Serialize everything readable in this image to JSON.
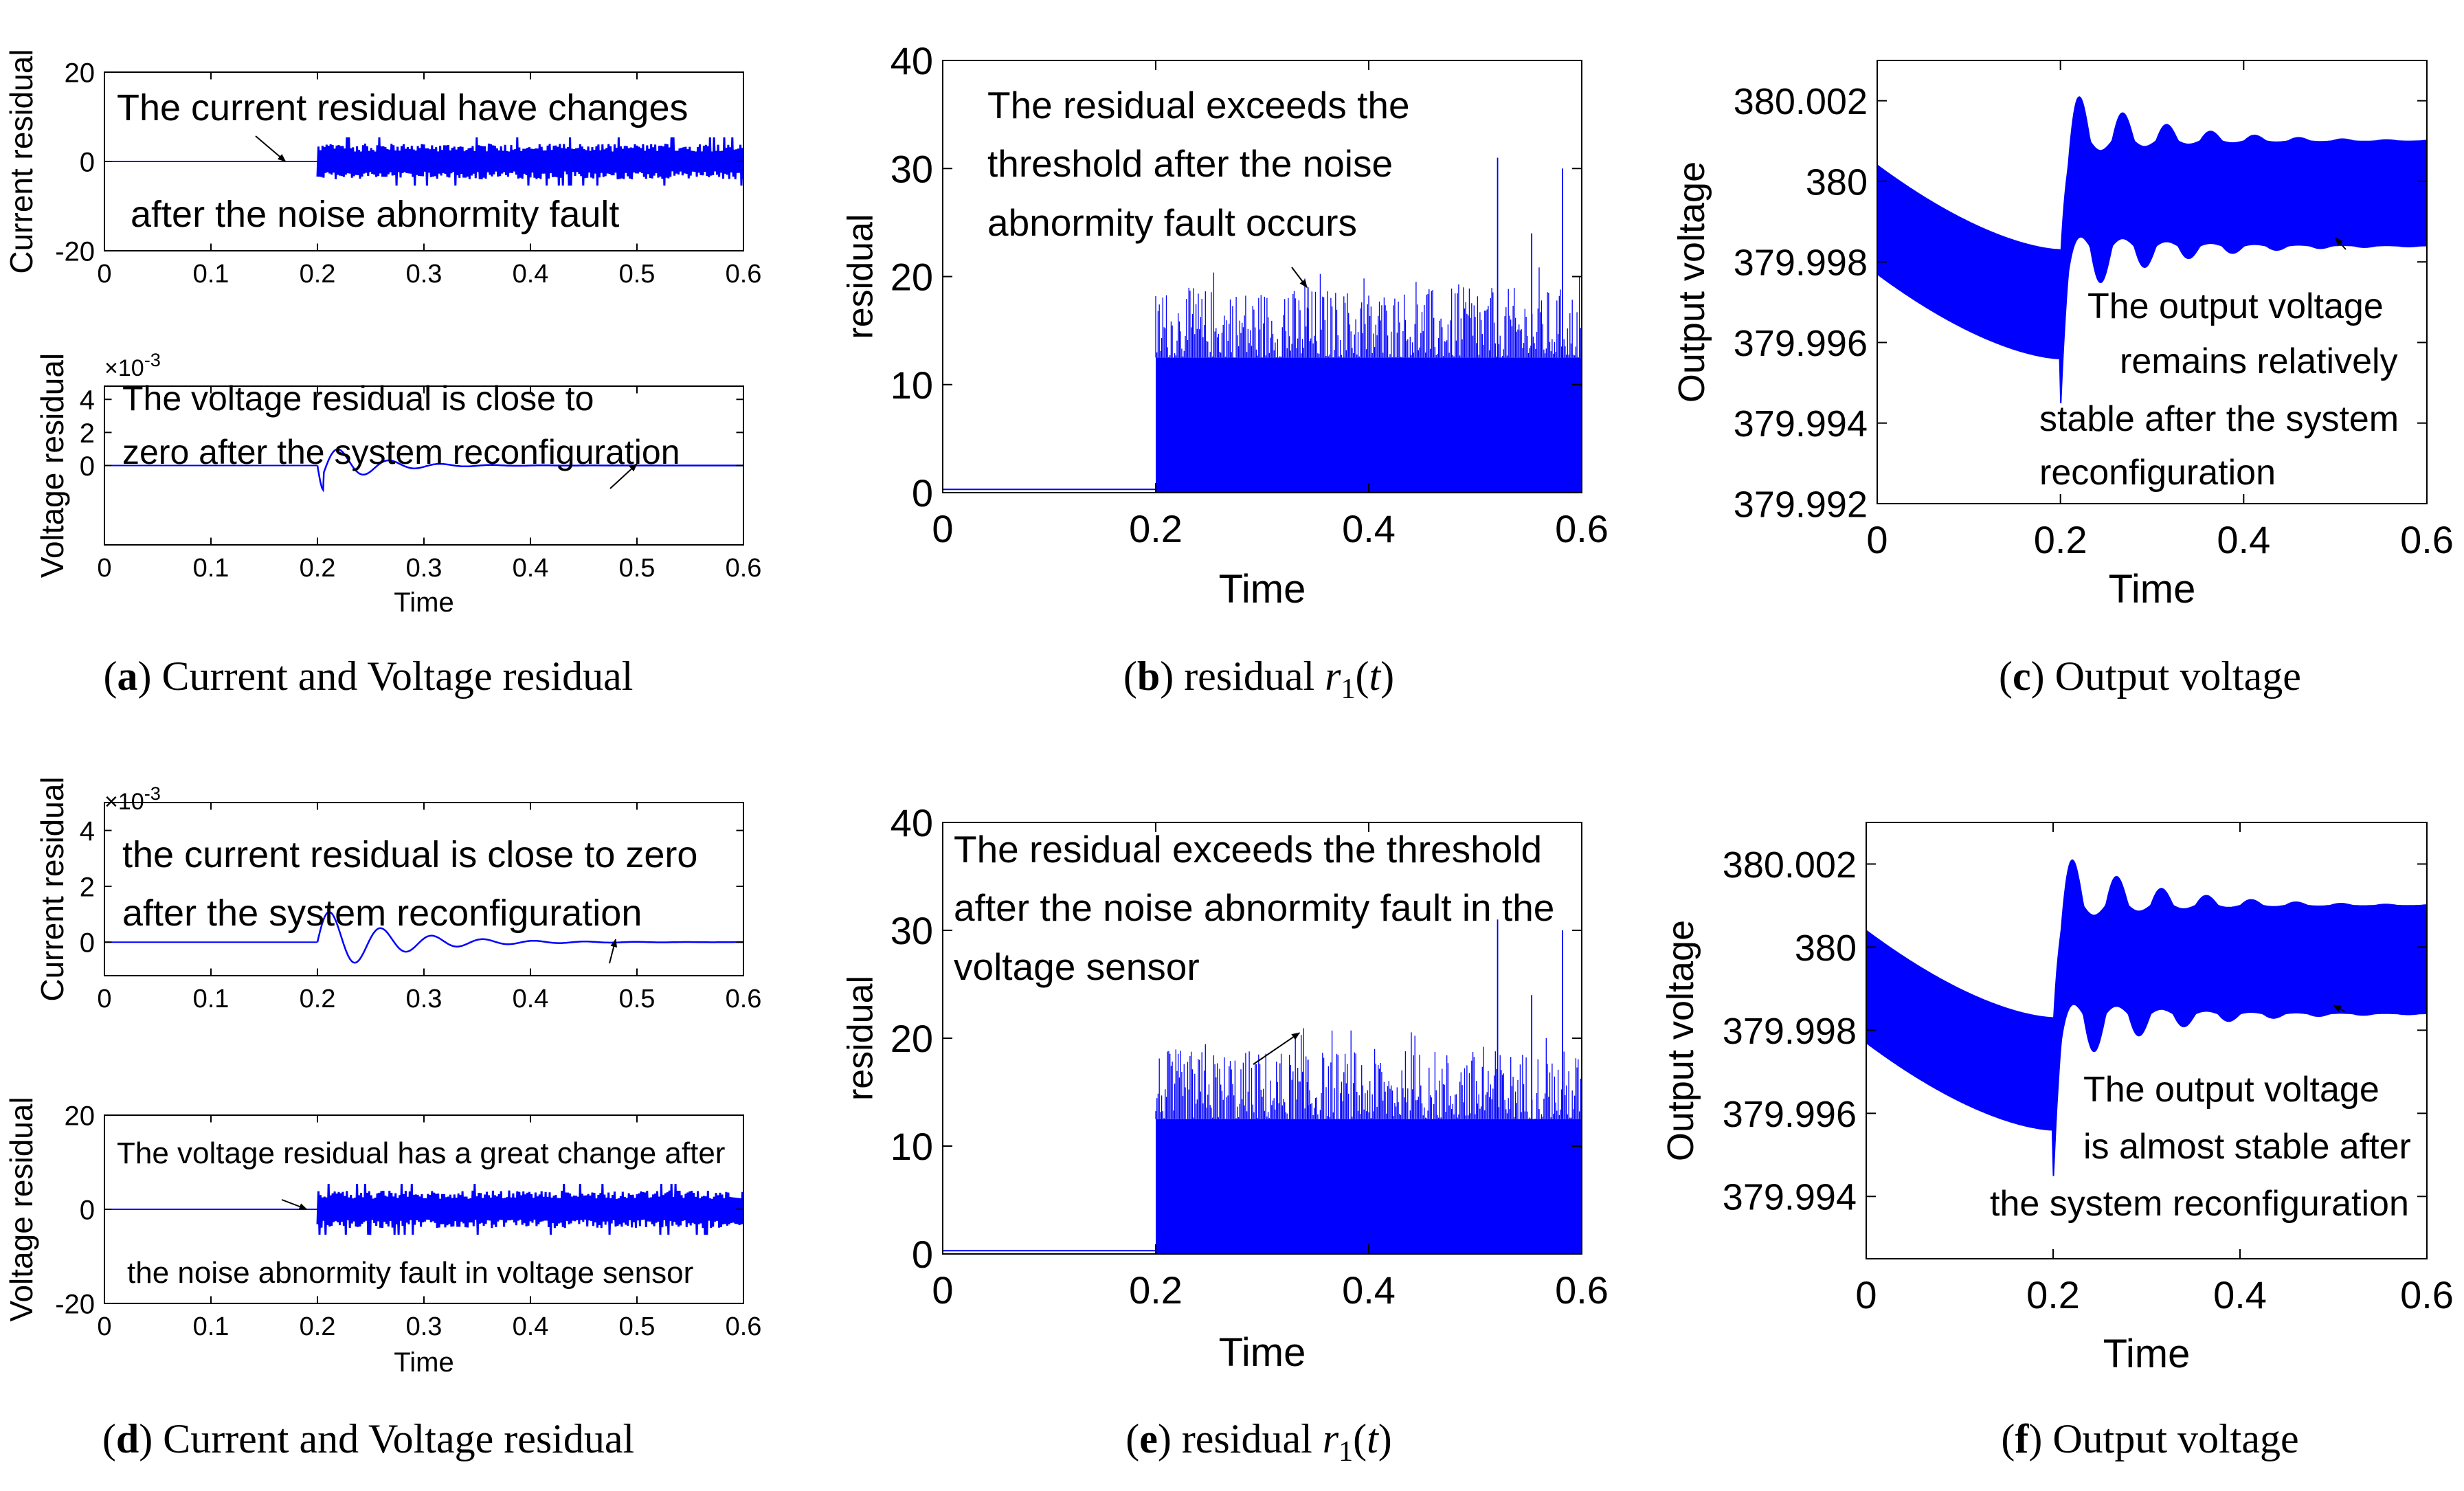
{
  "chart_data": [
    {
      "id": "a_top",
      "type": "line",
      "panel": "a",
      "xlabel": "",
      "ylabel": "Current residual",
      "xlim": [
        0,
        0.6
      ],
      "ylim": [
        -20,
        20
      ],
      "xticks": [
        0,
        0.1,
        0.2,
        0.3,
        0.4,
        0.5,
        0.6
      ],
      "xtick_labels": [
        "0",
        "0.1",
        "0.2",
        "0.3",
        "0.4",
        "0.5",
        "0.6"
      ],
      "yticks": [
        -20,
        0,
        20
      ],
      "ytick_labels": [
        "-20",
        "0",
        "20"
      ],
      "series": [
        {
          "name": "current residual",
          "kind": "noise_band",
          "t_start": 0.2,
          "before_value": 0,
          "amplitude": 4
        }
      ],
      "annotations": [
        {
          "text": "The current residual have changes",
          "arrow_to": [
            0.17,
            0
          ]
        },
        {
          "text": "after the noise abnormity fault"
        }
      ]
    },
    {
      "id": "a_bottom",
      "type": "line",
      "panel": "a",
      "xlabel": "Time",
      "ylabel": "Voltage residual",
      "multiplier": "×10-3",
      "xlim": [
        0,
        0.6
      ],
      "ylim": [
        -4.8,
        4.8
      ],
      "xticks": [
        0,
        0.1,
        0.2,
        0.3,
        0.4,
        0.5,
        0.6
      ],
      "xtick_labels": [
        "0",
        "0.1",
        "0.2",
        "0.3",
        "0.4",
        "0.5",
        "0.6"
      ],
      "yticks": [
        0,
        2,
        4
      ],
      "ytick_labels": [
        "0",
        "2",
        "4"
      ],
      "series": [
        {
          "name": "voltage residual",
          "kind": "damped_oscillation",
          "t_start": 0.2,
          "first_value": -1.5,
          "first_peak": 1.2,
          "period": 0.048,
          "decay": 24
        }
      ],
      "annotations": [
        {
          "text": "The voltage residual is close to"
        },
        {
          "text": "zero after the system reconfiguration",
          "arrow_to": [
            0.5,
            0.1
          ]
        }
      ]
    },
    {
      "id": "b",
      "type": "line",
      "panel": "b",
      "xlabel": "Time",
      "ylabel": "residual",
      "xlim": [
        0,
        0.6
      ],
      "ylim": [
        0,
        40
      ],
      "xticks": [
        0,
        0.2,
        0.4,
        0.6
      ],
      "xtick_labels": [
        "0",
        "0.2",
        "0.4",
        "0.6"
      ],
      "yticks": [
        0,
        10,
        20,
        30,
        40
      ],
      "ytick_labels": [
        "0",
        "10",
        "20",
        "30",
        "40"
      ],
      "series": [
        {
          "name": "residual r1(t)",
          "kind": "noise_spikes",
          "t_start": 0.2,
          "before_value": 0.3,
          "band_top": 12.5,
          "typical_max": 19,
          "outliers": [
            [
              0.521,
              31
            ],
            [
              0.582,
              30
            ],
            [
              0.553,
              24
            ],
            [
              0.343,
              19
            ]
          ]
        }
      ],
      "annotations": [
        {
          "text": "The residual exceeds the"
        },
        {
          "text": "threshold after the noise"
        },
        {
          "text": "abnormity fault occurs",
          "arrow_to": [
            0.342,
            19
          ]
        }
      ]
    },
    {
      "id": "c",
      "type": "line",
      "panel": "c",
      "xlabel": "Time",
      "ylabel": "Output voltage",
      "xlim": [
        0,
        0.6
      ],
      "ylim": [
        379.992,
        380.003
      ],
      "xticks": [
        0,
        0.2,
        0.4,
        0.6
      ],
      "xtick_labels": [
        "0",
        "0.2",
        "0.4",
        "0.6"
      ],
      "yticks": [
        379.992,
        379.994,
        379.996,
        379.998,
        380,
        380.002
      ],
      "ytick_labels": [
        "379.992",
        "379.994",
        "379.996",
        "379.998",
        "380",
        "380.002"
      ],
      "series": [
        {
          "name": "output voltage band",
          "kind": "ripple_band",
          "start_upper": 380.0004,
          "start_lower": 379.9977,
          "fault_upper": 379.9983,
          "fault_lower": 379.9956,
          "end_upper": 380.001,
          "end_lower": 379.9984,
          "osc_period": 0.048,
          "t_fault": 0.2
        }
      ],
      "annotations": [
        {
          "text": "The output voltage",
          "arrow_to": [
            0.5,
            379.9986
          ]
        },
        {
          "text": "remains relatively"
        },
        {
          "text": "stable after the system"
        },
        {
          "text": "reconfiguration"
        }
      ]
    },
    {
      "id": "d_top",
      "type": "line",
      "panel": "d",
      "xlabel": "",
      "ylabel": "Current residual",
      "multiplier": "×10-3",
      "xlim": [
        0,
        0.6
      ],
      "ylim": [
        -1.2,
        5
      ],
      "xticks": [
        0,
        0.1,
        0.2,
        0.3,
        0.4,
        0.5,
        0.6
      ],
      "xtick_labels": [
        "0",
        "0.1",
        "0.2",
        "0.3",
        "0.4",
        "0.5",
        "0.6"
      ],
      "yticks": [
        0,
        2,
        4
      ],
      "ytick_labels": [
        "0",
        "2",
        "4"
      ],
      "series": [
        {
          "name": "current residual",
          "kind": "damped_oscillation",
          "t_start": 0.2,
          "first_value": 1.3,
          "first_peak": 1.3,
          "period": 0.048,
          "decay": 16
        }
      ],
      "annotations": [
        {
          "text": "the current residual is close to zero"
        },
        {
          "text": "after the system reconfiguration",
          "arrow_to": [
            0.48,
            0.1
          ]
        }
      ]
    },
    {
      "id": "d_bottom",
      "type": "line",
      "panel": "d",
      "xlabel": "Time",
      "ylabel": "Voltage residual",
      "xlim": [
        0,
        0.6
      ],
      "ylim": [
        -20,
        20
      ],
      "xticks": [
        0,
        0.1,
        0.2,
        0.3,
        0.4,
        0.5,
        0.6
      ],
      "xtick_labels": [
        "0",
        "0.1",
        "0.2",
        "0.3",
        "0.4",
        "0.5",
        "0.6"
      ],
      "yticks": [
        -20,
        0,
        20
      ],
      "ytick_labels": [
        "-20",
        "0",
        "20"
      ],
      "series": [
        {
          "name": "voltage residual",
          "kind": "noise_band",
          "t_start": 0.2,
          "before_value": 0,
          "amplitude": 4
        }
      ],
      "annotations": [
        {
          "text": "The voltage residual has a great change after",
          "arrow_to": [
            0.19,
            0
          ]
        },
        {
          "text": "the noise abnormity fault in voltage sensor"
        }
      ]
    },
    {
      "id": "e",
      "type": "line",
      "panel": "e",
      "xlabel": "Time",
      "ylabel": "residual",
      "xlim": [
        0,
        0.6
      ],
      "ylim": [
        0,
        40
      ],
      "xticks": [
        0,
        0.2,
        0.4,
        0.6
      ],
      "xtick_labels": [
        "0",
        "0.2",
        "0.4",
        "0.6"
      ],
      "yticks": [
        0,
        10,
        20,
        30,
        40
      ],
      "ytick_labels": [
        "0",
        "10",
        "20",
        "30",
        "40"
      ],
      "series": [
        {
          "name": "residual r1(t)",
          "kind": "noise_spikes",
          "t_start": 0.2,
          "before_value": 0.3,
          "band_top": 12.5,
          "typical_max": 19,
          "outliers": [
            [
              0.521,
              31
            ],
            [
              0.582,
              30
            ],
            [
              0.553,
              24
            ],
            [
              0.343,
              18
            ]
          ]
        }
      ],
      "annotations": [
        {
          "text": "The residual exceeds the threshold"
        },
        {
          "text": "after the noise abnormity fault in the"
        },
        {
          "text": "voltage sensor",
          "arrow_to": [
            0.335,
            20.5
          ]
        }
      ]
    },
    {
      "id": "f",
      "type": "line",
      "panel": "f",
      "xlabel": "Time",
      "ylabel": "Output voltage",
      "xlim": [
        0,
        0.6
      ],
      "ylim": [
        379.9925,
        380.003
      ],
      "xticks": [
        0,
        0.2,
        0.4,
        0.6
      ],
      "xtick_labels": [
        "0",
        "0.2",
        "0.4",
        "0.6"
      ],
      "yticks": [
        379.994,
        379.996,
        379.998,
        380,
        380.002
      ],
      "ytick_labels": [
        "379.994",
        "379.996",
        "379.998",
        "380",
        "380.002"
      ],
      "series": [
        {
          "name": "output voltage band",
          "kind": "ripple_band",
          "start_upper": 380.0004,
          "start_lower": 379.9977,
          "fault_upper": 379.9983,
          "fault_lower": 379.9956,
          "end_upper": 380.001,
          "end_lower": 379.9984,
          "osc_period": 0.048,
          "t_fault": 0.2
        }
      ],
      "annotations": [
        {
          "text": "The output voltage",
          "arrow_to": [
            0.5,
            379.9986
          ]
        },
        {
          "text": "is almost stable after"
        },
        {
          "text": "the system reconfiguration"
        }
      ]
    }
  ],
  "captions": [
    {
      "panel": "a",
      "letter": "a",
      "text": "Current and Voltage residual"
    },
    {
      "panel": "b",
      "letter": "b",
      "text": "residual",
      "math": "r1(t)"
    },
    {
      "panel": "c",
      "letter": "c",
      "text": "Output voltage"
    },
    {
      "panel": "d",
      "letter": "d",
      "text": "Current and Voltage residual"
    },
    {
      "panel": "e",
      "letter": "e",
      "text": "residual",
      "math": "r1(t)"
    },
    {
      "panel": "f",
      "letter": "f",
      "text": "Output voltage"
    }
  ],
  "colors": {
    "line": "#0000ff",
    "axis": "#000000",
    "annotation": "#000000"
  }
}
